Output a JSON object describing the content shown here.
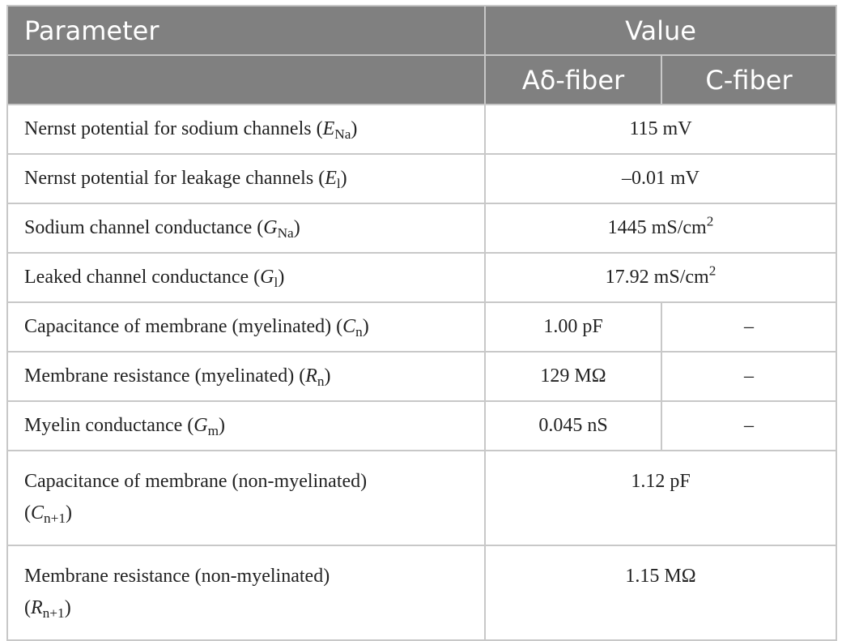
{
  "header": {
    "parameter": "Parameter",
    "value": "Value",
    "adelta": "Aδ-fiber",
    "cfiber": "C-fiber"
  },
  "rows": [
    {
      "name": "Nernst potential for sodium channels (",
      "sym": "E",
      "sub": "Na",
      "close": ")",
      "value": "115 mV"
    },
    {
      "name": "Nernst potential for leakage channels (",
      "sym": "E",
      "sub": "l",
      "close": ")",
      "value": "–0.01 mV"
    },
    {
      "name": "Sodium channel conductance (",
      "sym": "G",
      "sub": "Na",
      "close": ")",
      "value": "1445 mS/cm",
      "value_sup": "2"
    },
    {
      "name": "Leaked channel conductance (",
      "sym": "G",
      "sub": "l",
      "close": ")",
      "value": "17.92 mS/cm",
      "value_sup": "2"
    },
    {
      "name": "Capacitance of membrane (myelinated) (",
      "sym": "C",
      "sub": "n",
      "close": ")",
      "adelta": "1.00 pF",
      "cfiber": "–"
    },
    {
      "name": "Membrane resistance (myelinated) (",
      "sym": "R",
      "sub": "n",
      "close": ")",
      "adelta": "129 MΩ",
      "cfiber": "–"
    },
    {
      "name": "Myelin conductance (",
      "sym": "G",
      "sub": "m",
      "close": ")",
      "adelta": "0.045 nS",
      "cfiber": "–"
    },
    {
      "name": "Capacitance of membrane (non-myelinated)",
      "name2": "(",
      "sym": "C",
      "sub": "n+1",
      "close": ")",
      "value": "1.12 pF"
    },
    {
      "name": "Membrane resistance (non-myelinated)",
      "name2": "(",
      "sym": "R",
      "sub": "n+1",
      "close": ")",
      "value": "1.15 MΩ"
    }
  ]
}
